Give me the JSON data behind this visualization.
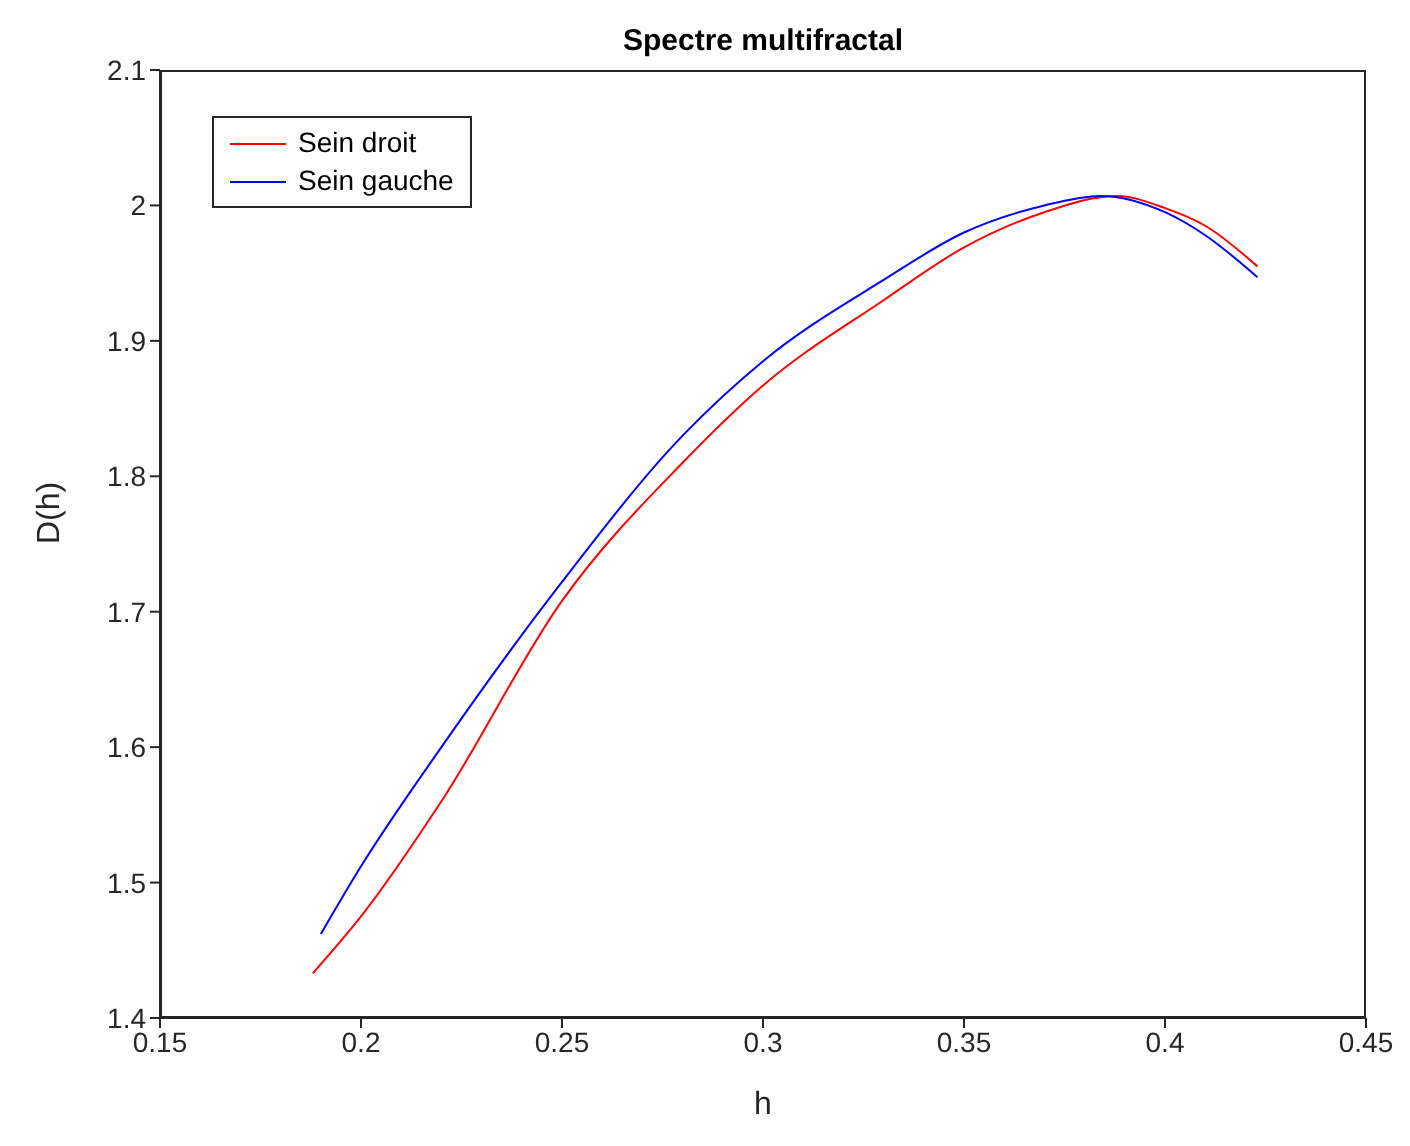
{
  "chart_data": {
    "type": "line",
    "title": "Spectre multifractal",
    "xlabel": "h",
    "ylabel": "D(h)",
    "xlim": [
      0.15,
      0.45
    ],
    "xticks": [
      0.15,
      0.2,
      0.25,
      0.3,
      0.35,
      0.4,
      0.45
    ],
    "ylim": [
      1.4,
      2.1
    ],
    "yticks": [
      1.4,
      1.5,
      1.6,
      1.7,
      1.8,
      1.9,
      2,
      2.1
    ],
    "grid": false,
    "legend": "top left",
    "marker": "none",
    "line_style": "solid",
    "series": [
      {
        "name": "Sein droit",
        "color": "#ff0000",
        "x": [
          0.188,
          0.2,
          0.22,
          0.25,
          0.28,
          0.3,
          0.33,
          0.35,
          0.37,
          0.388,
          0.4,
          0.41,
          0.423
        ],
        "values": [
          1.433,
          1.475,
          1.56,
          1.708,
          1.81,
          1.867,
          1.93,
          1.969,
          1.995,
          2.007,
          1.998,
          1.985,
          1.955
        ]
      },
      {
        "name": "Sein gauche",
        "color": "#0000ff",
        "x": [
          0.19,
          0.2,
          0.22,
          0.25,
          0.28,
          0.3,
          0.33,
          0.35,
          0.37,
          0.384,
          0.4,
          0.41,
          0.423
        ],
        "values": [
          1.462,
          1.512,
          1.6,
          1.722,
          1.83,
          1.885,
          1.945,
          1.98,
          2.0,
          2.007,
          1.995,
          1.978,
          1.947
        ]
      }
    ]
  }
}
